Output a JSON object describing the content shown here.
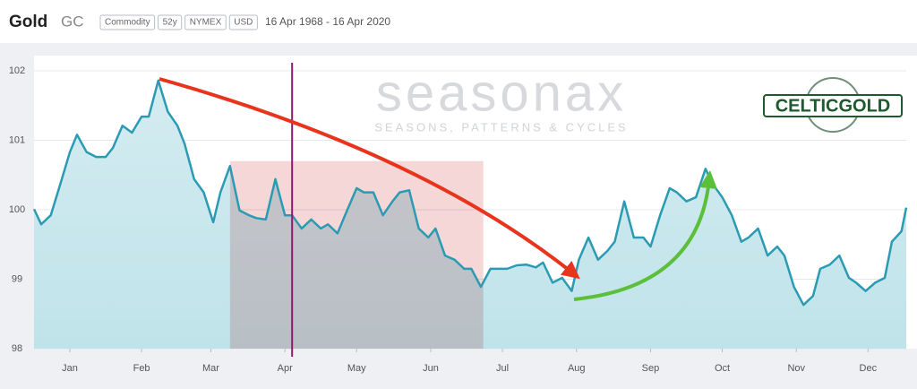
{
  "header": {
    "title": "Gold",
    "symbol": "GC",
    "tags": [
      "Commodity",
      "52y",
      "NYMEX",
      "USD"
    ],
    "date_range": "16 Apr 1968 - 16 Apr 2020"
  },
  "watermark": {
    "brand": "seasonax",
    "tagline": "SEASONS, PATTERNS & CYCLES"
  },
  "logo": "CELTICGOLD",
  "chart_data": {
    "type": "line",
    "x": [
      0,
      3,
      7,
      11,
      15,
      18,
      22,
      26,
      30,
      33,
      37,
      41,
      45,
      48,
      52,
      56,
      60,
      63,
      67,
      71,
      75,
      78,
      82,
      86,
      90,
      93,
      97,
      101,
      105,
      108,
      112,
      116,
      120,
      123,
      127,
      131,
      135,
      138,
      142,
      146,
      150,
      153,
      157,
      161,
      165,
      168,
      172,
      176,
      180,
      183,
      187,
      191,
      195,
      198,
      202,
      206,
      210,
      213,
      217,
      221,
      225,
      228,
      232,
      236,
      240,
      243,
      247,
      251,
      255,
      258,
      262,
      266,
      269,
      273,
      277,
      281,
      284,
      288,
      292,
      296,
      299,
      303,
      307,
      311,
      314,
      318,
      322,
      326,
      329,
      333,
      337,
      341,
      344,
      348,
      352,
      356,
      359,
      363,
      365
    ],
    "series": [
      {
        "name": "Gold",
        "color": "#2b9bb3",
        "values": [
          100.01,
          99.79,
          99.92,
          100.37,
          100.83,
          101.08,
          100.83,
          100.76,
          100.76,
          100.89,
          101.21,
          101.11,
          101.34,
          101.34,
          101.86,
          101.41,
          101.21,
          100.95,
          100.44,
          100.25,
          99.82,
          100.25,
          100.63,
          99.99,
          99.92,
          99.88,
          99.86,
          100.44,
          99.92,
          99.92,
          99.73,
          99.86,
          99.73,
          99.79,
          99.66,
          99.99,
          100.31,
          100.25,
          100.25,
          99.92,
          100.12,
          100.25,
          100.28,
          99.73,
          99.6,
          99.73,
          99.34,
          99.28,
          99.15,
          99.15,
          98.89,
          99.15,
          99.15,
          99.15,
          99.2,
          99.21,
          99.17,
          99.24,
          98.95,
          99.02,
          98.83,
          99.28,
          99.6,
          99.28,
          99.41,
          99.54,
          100.12,
          99.6,
          99.6,
          99.47,
          99.92,
          100.31,
          100.25,
          100.12,
          100.18,
          100.59,
          100.37,
          100.18,
          99.92,
          99.54,
          99.6,
          99.73,
          99.34,
          99.47,
          99.34,
          98.89,
          98.63,
          98.76,
          99.15,
          99.21,
          99.34,
          99.02,
          98.95,
          98.83,
          98.95,
          99.02,
          99.54,
          99.69,
          100.03
        ]
      }
    ],
    "xlim": [
      0,
      365
    ],
    "xticks": [
      {
        "value": 15,
        "label": "Jan"
      },
      {
        "value": 45,
        "label": "Feb"
      },
      {
        "value": 74,
        "label": "Mar"
      },
      {
        "value": 105,
        "label": "Apr"
      },
      {
        "value": 135,
        "label": "May"
      },
      {
        "value": 166,
        "label": "Jun"
      },
      {
        "value": 196,
        "label": "Jul"
      },
      {
        "value": 227,
        "label": "Aug"
      },
      {
        "value": 258,
        "label": "Sep"
      },
      {
        "value": 288,
        "label": "Oct"
      },
      {
        "value": 319,
        "label": "Nov"
      },
      {
        "value": 349,
        "label": "Dec"
      }
    ],
    "ylim": [
      98,
      102
    ],
    "yticks": [
      98,
      99,
      100,
      101,
      102
    ],
    "grid": true,
    "shaded_range": {
      "x": [
        82,
        188
      ],
      "top": 100.7,
      "color": "#f2c9c9"
    },
    "marker_x": 108,
    "marker_color": "#8b1a6b"
  }
}
